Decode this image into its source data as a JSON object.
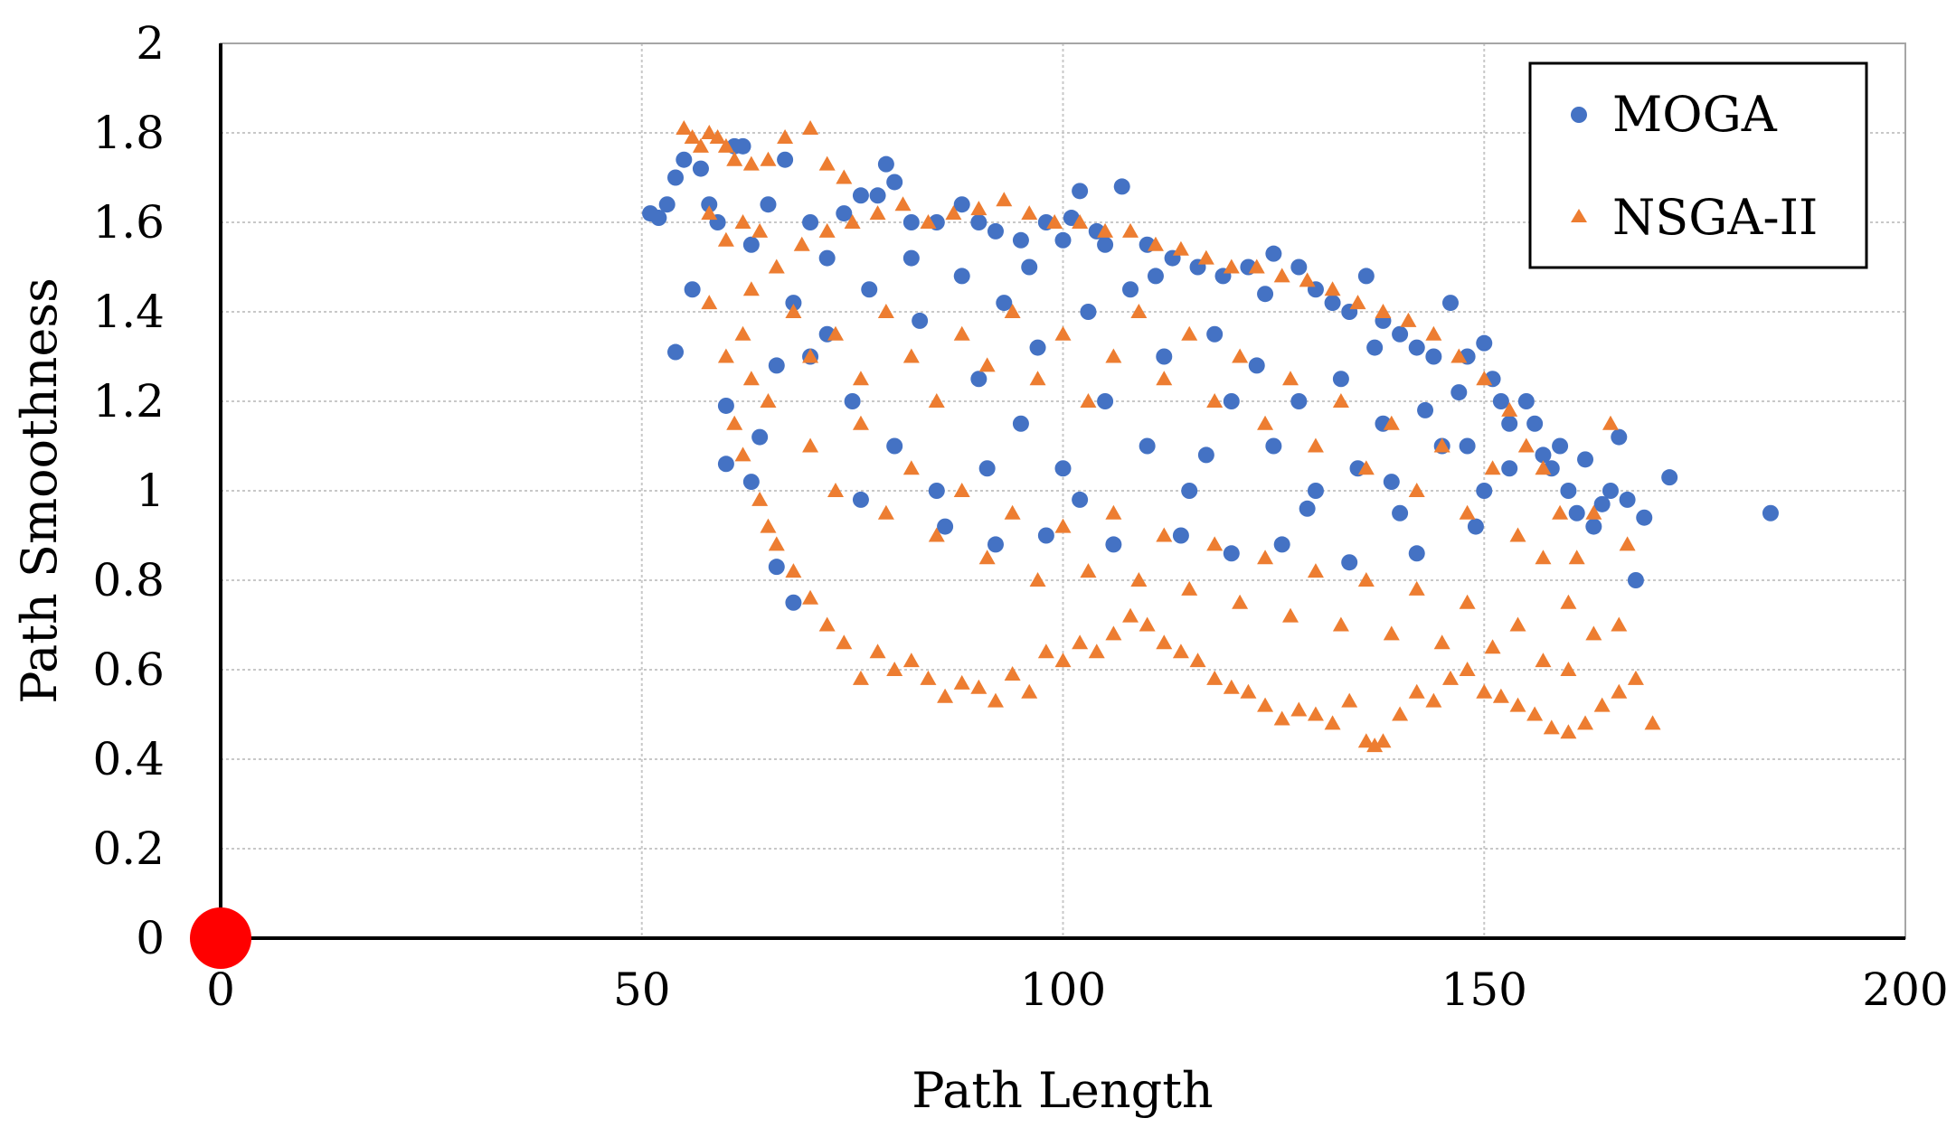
{
  "chart_data": {
    "type": "scatter",
    "title": "",
    "xlabel": "Path Length",
    "ylabel": "Path Smoothness",
    "xlim": [
      0,
      200
    ],
    "ylim": [
      0,
      2
    ],
    "x_ticks": [
      0,
      50,
      100,
      150,
      200
    ],
    "x_tick_labels": [
      "0",
      "50",
      "100",
      "150",
      "200"
    ],
    "y_ticks": [
      0,
      0.2,
      0.4,
      0.6,
      0.8,
      1,
      1.2,
      1.4,
      1.6,
      1.8,
      2
    ],
    "y_tick_labels": [
      "0",
      "0.2",
      "0.4",
      "0.6",
      "0.8",
      "1",
      "1.2",
      "1.4",
      "1.6",
      "1.8",
      "2"
    ],
    "grid": true,
    "legend_position": "top-right",
    "origin_marker": {
      "x": 0,
      "y": 0,
      "color": "#ff0000"
    },
    "series": [
      {
        "name": "MOGA",
        "marker": "circle",
        "color": "#4472c4",
        "points": [
          [
            51,
            1.62
          ],
          [
            52,
            1.61
          ],
          [
            53,
            1.64
          ],
          [
            54,
            1.7
          ],
          [
            55,
            1.74
          ],
          [
            54,
            1.31
          ],
          [
            56,
            1.45
          ],
          [
            57,
            1.72
          ],
          [
            58,
            1.64
          ],
          [
            59,
            1.6
          ],
          [
            60,
            1.19
          ],
          [
            60,
            1.06
          ],
          [
            61,
            1.77
          ],
          [
            62,
            1.77
          ],
          [
            63,
            1.55
          ],
          [
            63,
            1.02
          ],
          [
            65,
            1.64
          ],
          [
            66,
            0.83
          ],
          [
            67,
            1.74
          ],
          [
            68,
            0.75
          ],
          [
            70,
            1.6
          ],
          [
            72,
            1.52
          ],
          [
            74,
            1.62
          ],
          [
            76,
            1.66
          ],
          [
            78,
            1.66
          ],
          [
            79,
            1.73
          ],
          [
            80,
            1.69
          ],
          [
            82,
            1.6
          ],
          [
            85,
            1.6
          ],
          [
            88,
            1.64
          ],
          [
            90,
            1.6
          ],
          [
            92,
            1.58
          ],
          [
            95,
            1.56
          ],
          [
            98,
            1.6
          ],
          [
            100,
            1.56
          ],
          [
            101,
            1.61
          ],
          [
            102,
            1.67
          ],
          [
            104,
            1.58
          ],
          [
            105,
            1.55
          ],
          [
            107,
            1.68
          ],
          [
            110,
            1.55
          ],
          [
            113,
            1.52
          ],
          [
            116,
            1.5
          ],
          [
            119,
            1.48
          ],
          [
            122,
            1.5
          ],
          [
            125,
            1.53
          ],
          [
            128,
            1.5
          ],
          [
            130,
            1.45
          ],
          [
            132,
            1.42
          ],
          [
            134,
            1.4
          ],
          [
            136,
            1.48
          ],
          [
            138,
            1.38
          ],
          [
            140,
            1.35
          ],
          [
            142,
            1.32
          ],
          [
            144,
            1.3
          ],
          [
            146,
            1.42
          ],
          [
            148,
            1.3
          ],
          [
            150,
            1.33
          ],
          [
            151,
            1.25
          ],
          [
            152,
            1.2
          ],
          [
            153,
            1.15
          ],
          [
            155,
            1.2
          ],
          [
            156,
            1.15
          ],
          [
            157,
            1.08
          ],
          [
            158,
            1.05
          ],
          [
            159,
            1.1
          ],
          [
            160,
            1.0
          ],
          [
            161,
            0.95
          ],
          [
            162,
            1.07
          ],
          [
            163,
            0.92
          ],
          [
            164,
            0.97
          ],
          [
            165,
            1.0
          ],
          [
            166,
            1.12
          ],
          [
            167,
            0.98
          ],
          [
            168,
            0.8
          ],
          [
            169,
            0.94
          ],
          [
            172,
            1.03
          ],
          [
            184,
            0.95
          ],
          [
            70,
            1.3
          ],
          [
            75,
            1.2
          ],
          [
            80,
            1.1
          ],
          [
            85,
            1.0
          ],
          [
            90,
            1.25
          ],
          [
            95,
            1.15
          ],
          [
            100,
            1.05
          ],
          [
            105,
            1.2
          ],
          [
            110,
            1.1
          ],
          [
            115,
            1.0
          ],
          [
            120,
            1.2
          ],
          [
            125,
            1.1
          ],
          [
            130,
            1.0
          ],
          [
            135,
            1.05
          ],
          [
            140,
            0.95
          ],
          [
            145,
            1.1
          ],
          [
            150,
            1.0
          ],
          [
            64,
            1.12
          ],
          [
            66,
            1.28
          ],
          [
            68,
            1.42
          ],
          [
            72,
            1.35
          ],
          [
            77,
            1.45
          ],
          [
            83,
            1.38
          ],
          [
            88,
            1.48
          ],
          [
            93,
            1.42
          ],
          [
            97,
            1.32
          ],
          [
            103,
            1.4
          ],
          [
            108,
            1.45
          ],
          [
            112,
            1.3
          ],
          [
            118,
            1.35
          ],
          [
            123,
            1.28
          ],
          [
            128,
            1.2
          ],
          [
            133,
            1.25
          ],
          [
            138,
            1.15
          ],
          [
            143,
            1.18
          ],
          [
            148,
            1.1
          ],
          [
            153,
            1.05
          ],
          [
            86,
            0.92
          ],
          [
            92,
            0.88
          ],
          [
            98,
            0.9
          ],
          [
            106,
            0.88
          ],
          [
            114,
            0.9
          ],
          [
            120,
            0.86
          ],
          [
            126,
            0.88
          ],
          [
            134,
            0.84
          ],
          [
            142,
            0.86
          ],
          [
            76,
            0.98
          ],
          [
            82,
            1.52
          ],
          [
            96,
            1.5
          ],
          [
            111,
            1.48
          ],
          [
            124,
            1.44
          ],
          [
            137,
            1.32
          ],
          [
            147,
            1.22
          ],
          [
            91,
            1.05
          ],
          [
            102,
            0.98
          ],
          [
            117,
            1.08
          ],
          [
            129,
            0.96
          ],
          [
            139,
            1.02
          ],
          [
            149,
            0.92
          ]
        ]
      },
      {
        "name": "NSGA-II",
        "marker": "triangle",
        "color": "#ed7d31",
        "points": [
          [
            55,
            1.81
          ],
          [
            56,
            1.79
          ],
          [
            57,
            1.77
          ],
          [
            58,
            1.8
          ],
          [
            59,
            1.79
          ],
          [
            60,
            1.77
          ],
          [
            61,
            1.74
          ],
          [
            63,
            1.73
          ],
          [
            65,
            1.74
          ],
          [
            67,
            1.79
          ],
          [
            70,
            1.81
          ],
          [
            72,
            1.73
          ],
          [
            74,
            1.7
          ],
          [
            58,
            1.62
          ],
          [
            60,
            1.56
          ],
          [
            62,
            1.6
          ],
          [
            64,
            1.58
          ],
          [
            58,
            1.42
          ],
          [
            60,
            1.3
          ],
          [
            61,
            1.15
          ],
          [
            62,
            1.08
          ],
          [
            64,
            0.98
          ],
          [
            65,
            0.92
          ],
          [
            66,
            0.88
          ],
          [
            68,
            0.82
          ],
          [
            70,
            0.76
          ],
          [
            72,
            0.7
          ],
          [
            74,
            0.66
          ],
          [
            76,
            0.58
          ],
          [
            78,
            0.64
          ],
          [
            80,
            0.6
          ],
          [
            82,
            0.62
          ],
          [
            84,
            0.58
          ],
          [
            86,
            0.54
          ],
          [
            88,
            0.57
          ],
          [
            90,
            0.56
          ],
          [
            92,
            0.53
          ],
          [
            94,
            0.59
          ],
          [
            96,
            0.55
          ],
          [
            98,
            0.64
          ],
          [
            100,
            0.62
          ],
          [
            102,
            0.66
          ],
          [
            104,
            0.64
          ],
          [
            106,
            0.68
          ],
          [
            108,
            0.72
          ],
          [
            110,
            0.7
          ],
          [
            112,
            0.66
          ],
          [
            114,
            0.64
          ],
          [
            116,
            0.62
          ],
          [
            118,
            0.58
          ],
          [
            120,
            0.56
          ],
          [
            122,
            0.55
          ],
          [
            124,
            0.52
          ],
          [
            126,
            0.49
          ],
          [
            128,
            0.51
          ],
          [
            130,
            0.5
          ],
          [
            132,
            0.48
          ],
          [
            134,
            0.53
          ],
          [
            136,
            0.44
          ],
          [
            137,
            0.43
          ],
          [
            138,
            0.44
          ],
          [
            140,
            0.5
          ],
          [
            142,
            0.55
          ],
          [
            144,
            0.53
          ],
          [
            146,
            0.58
          ],
          [
            148,
            0.6
          ],
          [
            150,
            0.55
          ],
          [
            152,
            0.54
          ],
          [
            154,
            0.52
          ],
          [
            156,
            0.5
          ],
          [
            158,
            0.47
          ],
          [
            160,
            0.46
          ],
          [
            162,
            0.48
          ],
          [
            164,
            0.52
          ],
          [
            166,
            0.55
          ],
          [
            168,
            0.58
          ],
          [
            170,
            0.48
          ],
          [
            166,
            0.7
          ],
          [
            167,
            0.88
          ],
          [
            165,
            1.15
          ],
          [
            163,
            0.95
          ],
          [
            161,
            0.85
          ],
          [
            159,
            0.95
          ],
          [
            157,
            1.05
          ],
          [
            155,
            1.1
          ],
          [
            153,
            1.18
          ],
          [
            150,
            1.25
          ],
          [
            147,
            1.3
          ],
          [
            144,
            1.35
          ],
          [
            141,
            1.38
          ],
          [
            138,
            1.4
          ],
          [
            135,
            1.42
          ],
          [
            132,
            1.45
          ],
          [
            129,
            1.47
          ],
          [
            126,
            1.48
          ],
          [
            123,
            1.5
          ],
          [
            120,
            1.5
          ],
          [
            117,
            1.52
          ],
          [
            114,
            1.54
          ],
          [
            111,
            1.55
          ],
          [
            108,
            1.58
          ],
          [
            105,
            1.58
          ],
          [
            102,
            1.6
          ],
          [
            99,
            1.6
          ],
          [
            96,
            1.62
          ],
          [
            93,
            1.65
          ],
          [
            90,
            1.63
          ],
          [
            87,
            1.62
          ],
          [
            84,
            1.6
          ],
          [
            81,
            1.64
          ],
          [
            78,
            1.62
          ],
          [
            75,
            1.6
          ],
          [
            72,
            1.58
          ],
          [
            69,
            1.55
          ],
          [
            66,
            1.5
          ],
          [
            63,
            1.45
          ],
          [
            62,
            1.35
          ],
          [
            63,
            1.25
          ],
          [
            65,
            1.2
          ],
          [
            68,
            1.4
          ],
          [
            70,
            1.3
          ],
          [
            73,
            1.35
          ],
          [
            76,
            1.25
          ],
          [
            79,
            1.4
          ],
          [
            82,
            1.3
          ],
          [
            85,
            1.2
          ],
          [
            88,
            1.35
          ],
          [
            91,
            1.28
          ],
          [
            94,
            1.4
          ],
          [
            97,
            1.25
          ],
          [
            100,
            1.35
          ],
          [
            103,
            1.2
          ],
          [
            106,
            1.3
          ],
          [
            109,
            1.4
          ],
          [
            112,
            1.25
          ],
          [
            115,
            1.35
          ],
          [
            118,
            1.2
          ],
          [
            121,
            1.3
          ],
          [
            124,
            1.15
          ],
          [
            127,
            1.25
          ],
          [
            130,
            1.1
          ],
          [
            133,
            1.2
          ],
          [
            136,
            1.05
          ],
          [
            139,
            1.15
          ],
          [
            142,
            1.0
          ],
          [
            145,
            1.1
          ],
          [
            148,
            0.95
          ],
          [
            151,
            1.05
          ],
          [
            154,
            0.9
          ],
          [
            157,
            0.85
          ],
          [
            160,
            0.75
          ],
          [
            163,
            0.68
          ],
          [
            70,
            1.1
          ],
          [
            73,
            1.0
          ],
          [
            76,
            1.15
          ],
          [
            79,
            0.95
          ],
          [
            82,
            1.05
          ],
          [
            85,
            0.9
          ],
          [
            88,
            1.0
          ],
          [
            91,
            0.85
          ],
          [
            94,
            0.95
          ],
          [
            97,
            0.8
          ],
          [
            100,
            0.92
          ],
          [
            103,
            0.82
          ],
          [
            106,
            0.95
          ],
          [
            109,
            0.8
          ],
          [
            112,
            0.9
          ],
          [
            115,
            0.78
          ],
          [
            118,
            0.88
          ],
          [
            121,
            0.75
          ],
          [
            124,
            0.85
          ],
          [
            127,
            0.72
          ],
          [
            130,
            0.82
          ],
          [
            133,
            0.7
          ],
          [
            136,
            0.8
          ],
          [
            139,
            0.68
          ],
          [
            142,
            0.78
          ],
          [
            145,
            0.66
          ],
          [
            148,
            0.75
          ],
          [
            151,
            0.65
          ],
          [
            154,
            0.7
          ],
          [
            157,
            0.62
          ],
          [
            160,
            0.6
          ]
        ]
      }
    ]
  }
}
